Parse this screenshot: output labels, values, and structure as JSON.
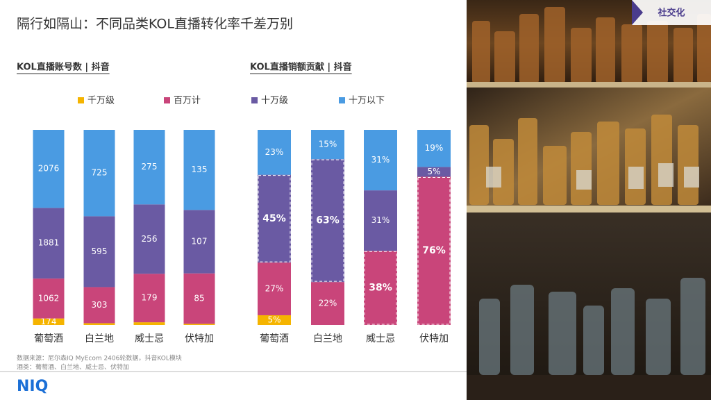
{
  "title": "隔行如隔山：不同品类KOL直播转化率千差万别",
  "tag": "社交化",
  "logo": "NIQ",
  "source": [
    "数据来源：尼尔森IQ MyEcom 2406轮数据，抖音KOL模块",
    "酒类：葡萄酒、白兰地、威士忌、伏特加"
  ],
  "chart_data": [
    {
      "type": "bar",
      "stacked": "percent",
      "title": "KOL直播账号数 | 抖音",
      "categories": [
        "葡萄酒",
        "白兰地",
        "威士忌",
        "伏特加"
      ],
      "series": [
        {
          "name": "千万级",
          "color": "#f5b400",
          "values": [
            174,
            15,
            10,
            2
          ],
          "value_labels": [
            "174",
            null,
            null,
            null
          ]
        },
        {
          "name": "百万计",
          "color": "#c9457a",
          "values": [
            1062,
            303,
            179,
            85
          ]
        },
        {
          "name": "十万级",
          "color": "#6a5aa3",
          "values": [
            1881,
            595,
            256,
            107
          ]
        },
        {
          "name": "十万以下",
          "color": "#4a9be2",
          "values": [
            2076,
            725,
            275,
            135
          ]
        }
      ]
    },
    {
      "type": "bar",
      "stacked": "percent",
      "title": "KOL直播销额贡献 | 抖音",
      "categories": [
        "葡萄酒",
        "白兰地",
        "威士忌",
        "伏特加"
      ],
      "series": [
        {
          "name": "千万级",
          "color": "#f5b400",
          "values": [
            5,
            0,
            0,
            0
          ],
          "value_labels": [
            "5%",
            null,
            null,
            null
          ],
          "bold": [
            false,
            false,
            false,
            false
          ]
        },
        {
          "name": "百万计",
          "color": "#c9457a",
          "values": [
            27,
            22,
            38,
            76
          ],
          "value_labels": [
            "27%",
            "22%",
            "38%",
            "76%"
          ],
          "bold": [
            false,
            false,
            true,
            true
          ]
        },
        {
          "name": "十万级",
          "color": "#6a5aa3",
          "values": [
            45,
            63,
            31,
            5
          ],
          "value_labels": [
            "45%",
            "63%",
            "31%",
            "5%"
          ],
          "bold": [
            true,
            true,
            false,
            false
          ]
        },
        {
          "name": "十万以下",
          "color": "#4a9be2",
          "values": [
            23,
            15,
            31,
            19
          ],
          "value_labels": [
            "23%",
            "15%",
            "31%",
            "19%"
          ],
          "bold": [
            false,
            false,
            false,
            false
          ]
        }
      ]
    }
  ]
}
